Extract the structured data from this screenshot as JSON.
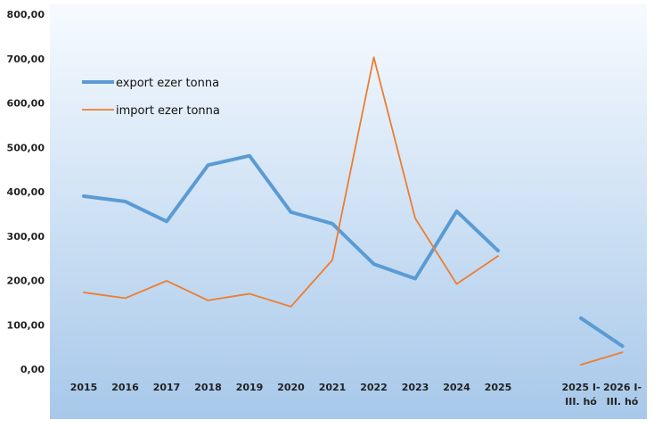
{
  "chart_data": {
    "type": "line",
    "categories": [
      "2015",
      "2016",
      "2017",
      "2018",
      "2019",
      "2020",
      "2021",
      "2022",
      "2023",
      "2024",
      "2025",
      "",
      "2025 I- III. hó",
      "2026 I- III. hó"
    ],
    "category_lines": [
      [
        "2015"
      ],
      [
        "2016"
      ],
      [
        "2017"
      ],
      [
        "2018"
      ],
      [
        "2019"
      ],
      [
        "2020"
      ],
      [
        "2021"
      ],
      [
        "2022"
      ],
      [
        "2023"
      ],
      [
        "2024"
      ],
      [
        "2025"
      ],
      [
        ""
      ],
      [
        "2025 I-",
        "III. hó"
      ],
      [
        "2026 I-",
        "III. hó"
      ]
    ],
    "series": [
      {
        "name": "export ezer tonna",
        "color": "#5b9bd5",
        "values": [
          390,
          378,
          333,
          460,
          481,
          354,
          328,
          237,
          204,
          356,
          267,
          null,
          115,
          52
        ]
      },
      {
        "name": "import ezer tonna",
        "color": "#ed7d31",
        "values": [
          173,
          160,
          199,
          155,
          170,
          141,
          246,
          703,
          340,
          192,
          255,
          null,
          10,
          38
        ]
      }
    ],
    "ylim": [
      0,
      800
    ],
    "yticks": [
      "0,00",
      "100,00",
      "200,00",
      "300,00",
      "400,00",
      "500,00",
      "600,00",
      "700,00",
      "800,00"
    ],
    "legend_position": "top-left",
    "grid": false,
    "background_gradient": [
      "#f7fbff",
      "#a7c8ea"
    ]
  }
}
